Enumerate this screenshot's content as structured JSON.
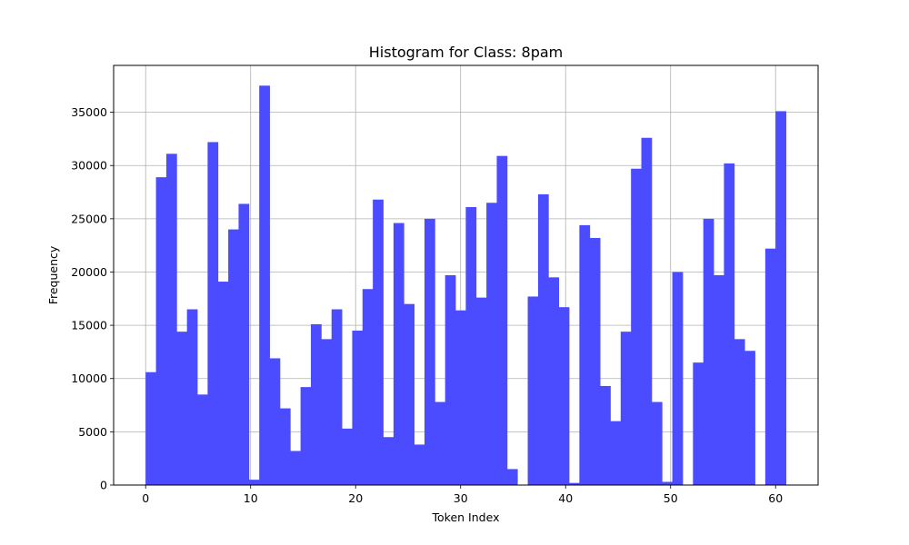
{
  "chart_data": {
    "type": "bar",
    "title": "Histogram for Class: 8pam",
    "xlabel": "Token Index",
    "ylabel": "Frequency",
    "bin_start": 0,
    "bin_width": 0.9836,
    "xlim": [
      -3.05,
      64.05
    ],
    "ylim": [
      0,
      39400
    ],
    "xticks": [
      0,
      10,
      20,
      30,
      40,
      50,
      60
    ],
    "yticks": [
      0,
      5000,
      10000,
      15000,
      20000,
      25000,
      30000,
      35000
    ],
    "grid": true,
    "bar_color": "#4b4bff",
    "values": [
      10600,
      28900,
      31100,
      14400,
      16500,
      8500,
      32200,
      19100,
      24000,
      26400,
      500,
      37500,
      11900,
      7200,
      3200,
      9200,
      15100,
      13700,
      16500,
      5300,
      14500,
      18400,
      26800,
      4500,
      24600,
      17000,
      3800,
      25000,
      7800,
      19700,
      16400,
      26100,
      17600,
      26500,
      30900,
      1500,
      0,
      17700,
      27300,
      19500,
      16700,
      200,
      24400,
      23200,
      9300,
      6000,
      14400,
      29700,
      32600,
      7800,
      300,
      20000,
      0,
      11500,
      25000,
      19700,
      30200,
      13700,
      12600,
      0,
      22200,
      35100
    ]
  }
}
